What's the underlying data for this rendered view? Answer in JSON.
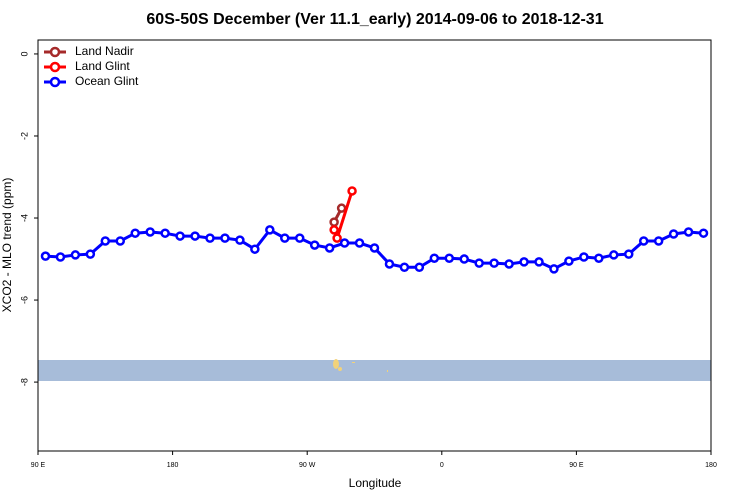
{
  "chart_data": {
    "type": "line",
    "title": "60S-50S December (Ver 11.1_early)   2014-09-06 to 2018-12-31",
    "x_label": "Longitude",
    "y_label": "XCO2 - MLO trend (ppm)",
    "xlim": [
      90,
      540
    ],
    "ylim": [
      -9.68,
      0.34
    ],
    "xticks": [
      {
        "value": 90,
        "label": "90 E"
      },
      180,
      {
        "value": 270,
        "label": "90 W"
      },
      {
        "value": 360,
        "label": "0"
      },
      {
        "value": 450,
        "label": "90 E"
      },
      {
        "value": 540,
        "label": "180"
      }
    ],
    "yticks": [
      0,
      -2,
      -4,
      -6,
      -8
    ],
    "legend": "top-left",
    "series": [
      {
        "name": "Land Nadir",
        "color": "#a52a2a",
        "x": [
          288,
          293
        ],
        "values": [
          -4.1,
          -3.76
        ]
      },
      {
        "name": "Land Glint",
        "color": "#ff0000",
        "x": [
          288,
          290,
          300
        ],
        "values": [
          -4.29,
          -4.49,
          -3.34
        ]
      },
      {
        "name": "Ocean Glint",
        "color": "#0000ff",
        "x": [
          95,
          105,
          115,
          125,
          135,
          145,
          155,
          165,
          175,
          185,
          195,
          205,
          215,
          225,
          235,
          245,
          255,
          265,
          275,
          285,
          295,
          305,
          315,
          325,
          335,
          345,
          355,
          365,
          375,
          385,
          395,
          405,
          415,
          425,
          435,
          445,
          455,
          465,
          475,
          485,
          495,
          505,
          515,
          525,
          535
        ],
        "values": [
          -4.93,
          -4.95,
          -4.9,
          -4.88,
          -4.56,
          -4.56,
          -4.37,
          -4.34,
          -4.37,
          -4.44,
          -4.44,
          -4.49,
          -4.49,
          -4.54,
          -4.76,
          -4.29,
          -4.49,
          -4.49,
          -4.66,
          -4.73,
          -4.61,
          -4.61,
          -4.73,
          -5.12,
          -5.2,
          -5.2,
          -4.98,
          -4.98,
          -5.0,
          -5.1,
          -5.1,
          -5.12,
          -5.07,
          -5.07,
          -5.24,
          -5.05,
          -4.95,
          -4.98,
          -4.9,
          -4.88,
          -4.56,
          -4.56,
          -4.39,
          -4.34,
          -4.37
        ]
      }
    ]
  }
}
